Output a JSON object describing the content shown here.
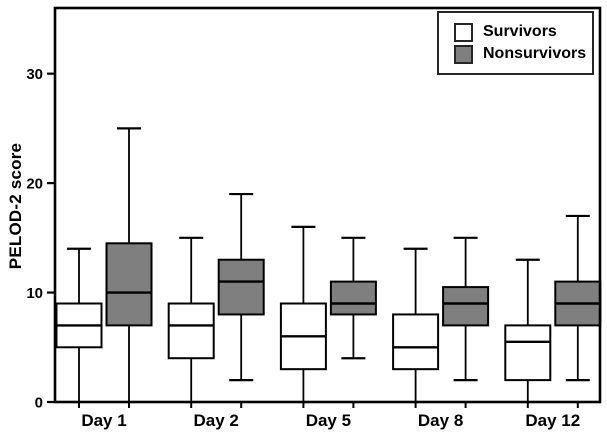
{
  "figure": {
    "background": "#ffffff",
    "line_color": "#000000"
  },
  "chart_data": {
    "type": "boxplot",
    "title": "",
    "xlabel": "",
    "ylabel": "PELOD-2 score",
    "categories": [
      "Day 1",
      "Day 2",
      "Day 5",
      "Day 8",
      "Day 12"
    ],
    "yticks": [
      "0",
      "10",
      "20",
      "30"
    ],
    "ytick_values": [
      0,
      10,
      20,
      30
    ],
    "ylim": [
      0,
      36
    ],
    "grid": false,
    "legend": {
      "position": "top-right",
      "entries": [
        {
          "label": "Survivors",
          "fill": "#ffffff"
        },
        {
          "label": "Nonsurvivors",
          "fill": "#7f7f7f"
        }
      ]
    },
    "series": [
      {
        "name": "Survivors",
        "fill": "#ffffff",
        "boxes": [
          {
            "category": "Day 1",
            "whisker_low": 0,
            "q1": 5,
            "median": 7,
            "q3": 9,
            "whisker_high": 14
          },
          {
            "category": "Day 2",
            "whisker_low": 0,
            "q1": 4,
            "median": 7,
            "q3": 9,
            "whisker_high": 15
          },
          {
            "category": "Day 5",
            "whisker_low": 0,
            "q1": 3,
            "median": 6,
            "q3": 9,
            "whisker_high": 16
          },
          {
            "category": "Day 8",
            "whisker_low": 0,
            "q1": 3,
            "median": 5,
            "q3": 8,
            "whisker_high": 14
          },
          {
            "category": "Day 12",
            "whisker_low": 0,
            "q1": 2,
            "median": 5.5,
            "q3": 7,
            "whisker_high": 13
          }
        ]
      },
      {
        "name": "Nonsurvivors",
        "fill": "#7f7f7f",
        "boxes": [
          {
            "category": "Day 1",
            "whisker_low": 0,
            "q1": 7,
            "median": 10,
            "q3": 14.5,
            "whisker_high": 25
          },
          {
            "category": "Day 2",
            "whisker_low": 2,
            "q1": 8,
            "median": 11,
            "q3": 13,
            "whisker_high": 19
          },
          {
            "category": "Day 5",
            "whisker_low": 4,
            "q1": 8,
            "median": 9,
            "q3": 11,
            "whisker_high": 15
          },
          {
            "category": "Day 8",
            "whisker_low": 2,
            "q1": 7,
            "median": 9,
            "q3": 10.5,
            "whisker_high": 15
          },
          {
            "category": "Day 12",
            "whisker_low": 2,
            "q1": 7,
            "median": 9,
            "q3": 11,
            "whisker_high": 17
          }
        ]
      }
    ]
  }
}
